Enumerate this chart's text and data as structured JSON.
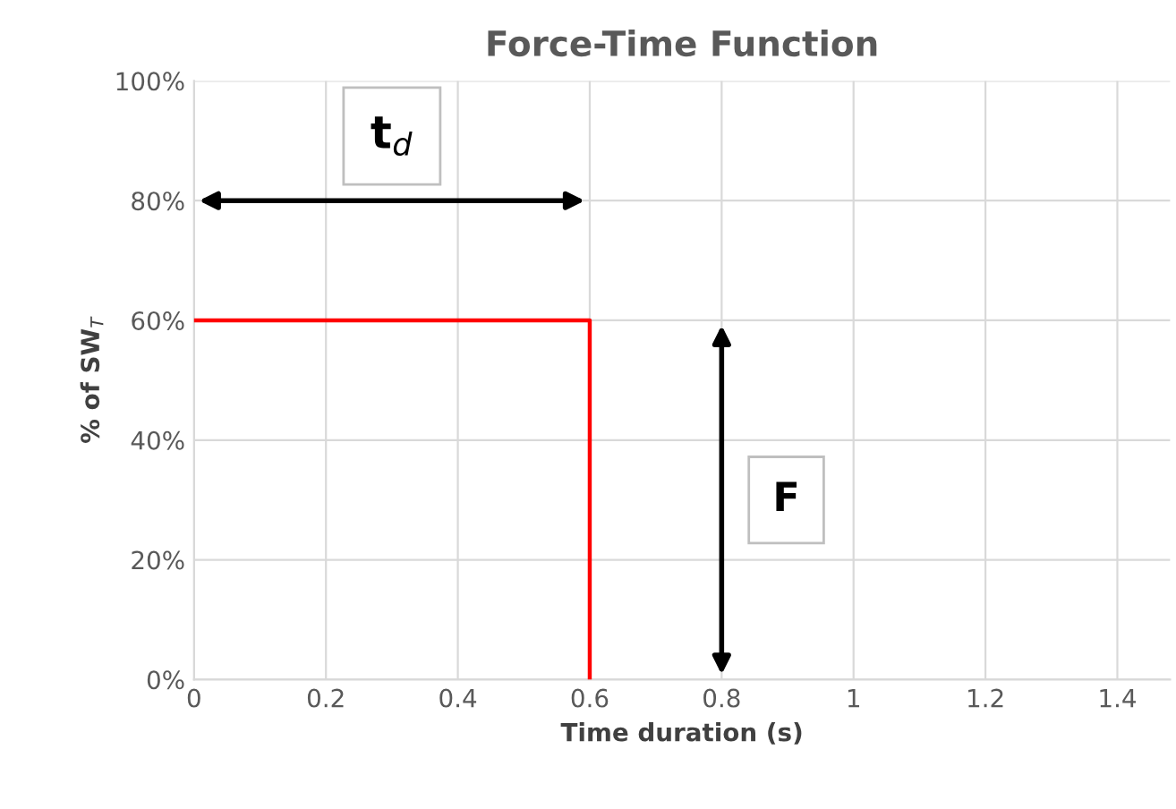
{
  "chart_data": {
    "type": "step",
    "title": "Force-Time Function",
    "xlabel": "Time duration (s)",
    "ylabel": "% of SW$_{T}$",
    "x": [
      0,
      0.6
    ],
    "series": [
      {
        "color": "#ff0000",
        "values": [
          60,
          0
        ]
      }
    ],
    "xlim": [
      0,
      1.48
    ],
    "xticks": [
      0,
      0.2,
      0.4,
      0.6,
      0.8,
      1,
      1.2,
      1.4
    ],
    "ylim": [
      0,
      100
    ],
    "yticks": [
      {
        "value": 0,
        "label": "0%"
      },
      {
        "value": 20,
        "label": "20%"
      },
      {
        "value": 40,
        "label": "40%"
      },
      {
        "value": 60,
        "label": "60%"
      },
      {
        "value": 80,
        "label": "80%"
      },
      {
        "value": 100,
        "label": "100%"
      }
    ],
    "annotations": [
      "t$_{d}$",
      "F"
    ],
    "grid": true,
    "line_style": "solid",
    "legend": false
  }
}
